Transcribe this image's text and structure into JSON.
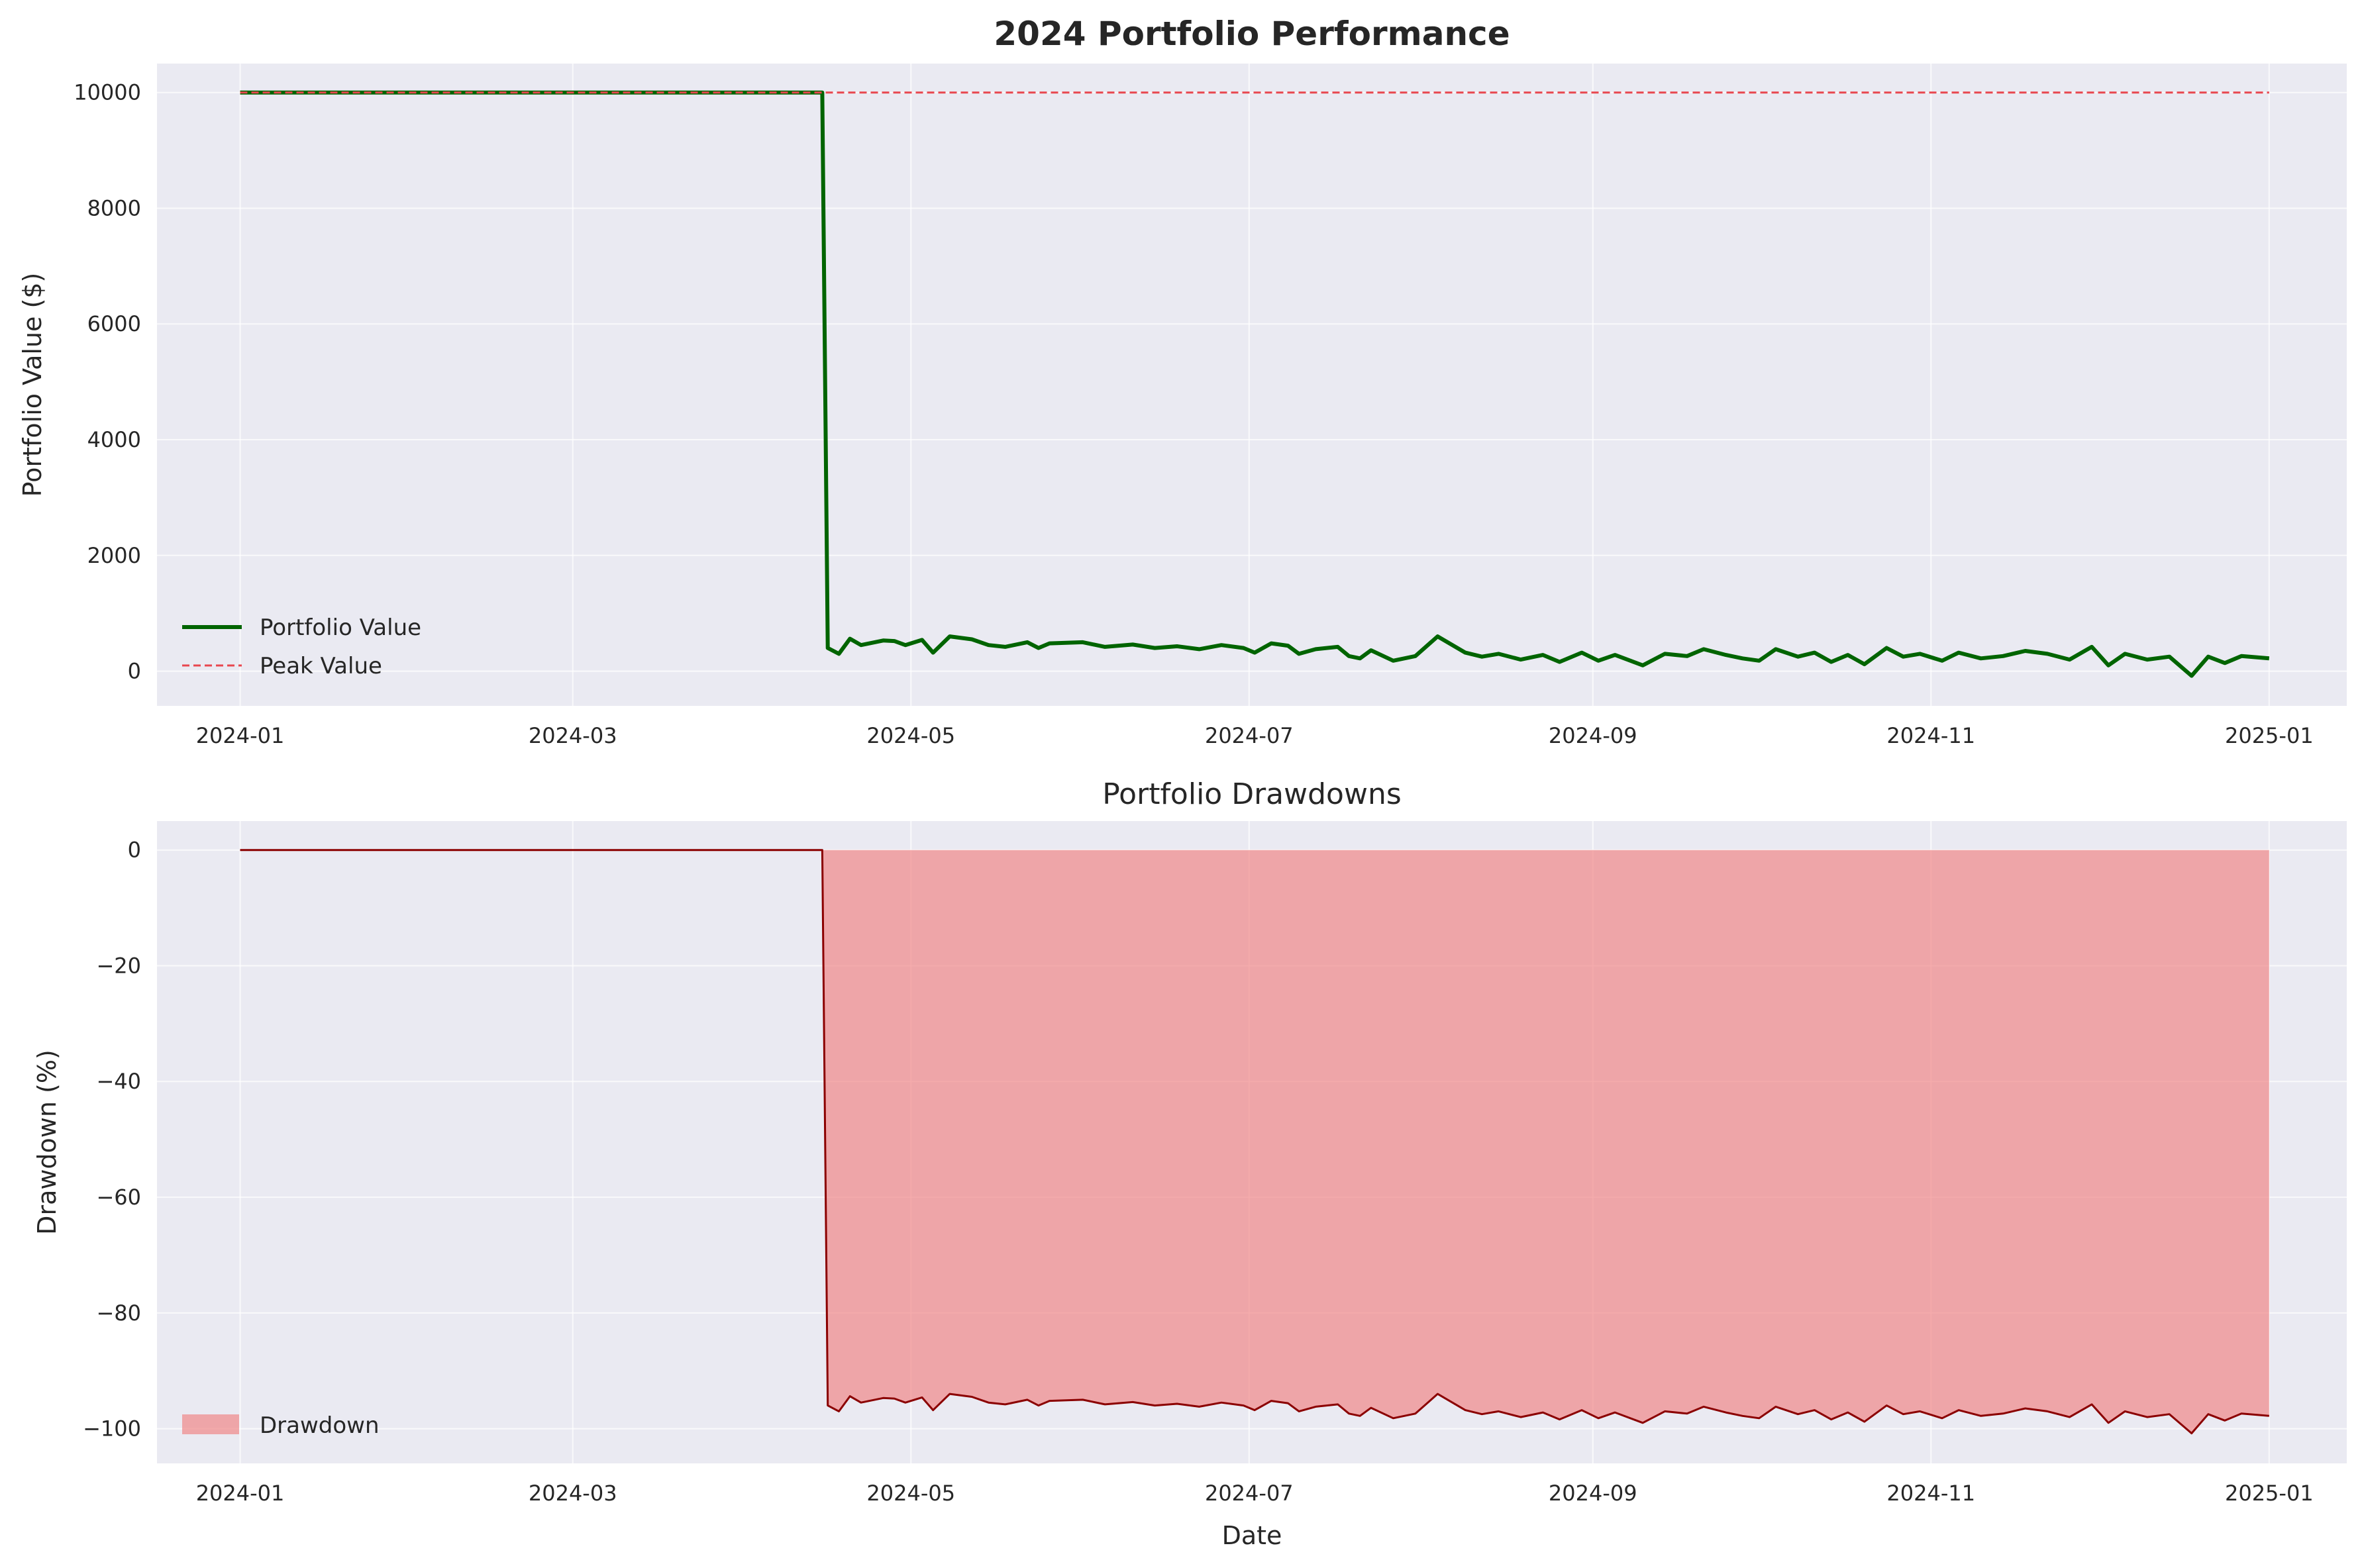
{
  "figure": {
    "background": "#ffffff",
    "axes_background": "#eaeaf2"
  },
  "chart_data": [
    {
      "type": "line",
      "title": "2024 Portfolio Performance",
      "xlabel": "",
      "ylabel": "Portfolio Value ($)",
      "x_start": "2024-01-01",
      "x_ticks": [
        "2024-01",
        "2024-03",
        "2024-05",
        "2024-07",
        "2024-09",
        "2024-11",
        "2025-01"
      ],
      "xlim": [
        "2023-12-17",
        "2025-01-15"
      ],
      "y_ticks": [
        0,
        2000,
        4000,
        6000,
        8000,
        10000
      ],
      "ylim": [
        -600,
        10500
      ],
      "grid": true,
      "legend": "lower-left",
      "series": [
        {
          "name": "Portfolio Value",
          "style": "solid",
          "color": "#006400",
          "points": [
            [
              "2024-01-01",
              10000
            ],
            [
              "2024-04-15",
              10000
            ],
            [
              "2024-04-16",
              400
            ],
            [
              "2024-04-18",
              300
            ],
            [
              "2024-04-20",
              560
            ],
            [
              "2024-04-22",
              450
            ],
            [
              "2024-04-26",
              530
            ],
            [
              "2024-04-28",
              520
            ],
            [
              "2024-04-30",
              450
            ],
            [
              "2024-05-03",
              540
            ],
            [
              "2024-05-05",
              320
            ],
            [
              "2024-05-08",
              600
            ],
            [
              "2024-05-12",
              550
            ],
            [
              "2024-05-15",
              450
            ],
            [
              "2024-05-18",
              420
            ],
            [
              "2024-05-22",
              500
            ],
            [
              "2024-05-24",
              400
            ],
            [
              "2024-05-26",
              480
            ],
            [
              "2024-06-01",
              500
            ],
            [
              "2024-06-05",
              420
            ],
            [
              "2024-06-10",
              460
            ],
            [
              "2024-06-14",
              400
            ],
            [
              "2024-06-18",
              430
            ],
            [
              "2024-06-22",
              380
            ],
            [
              "2024-06-26",
              450
            ],
            [
              "2024-06-30",
              400
            ],
            [
              "2024-07-02",
              320
            ],
            [
              "2024-07-05",
              480
            ],
            [
              "2024-07-08",
              440
            ],
            [
              "2024-07-10",
              300
            ],
            [
              "2024-07-13",
              380
            ],
            [
              "2024-07-17",
              420
            ],
            [
              "2024-07-19",
              260
            ],
            [
              "2024-07-21",
              220
            ],
            [
              "2024-07-23",
              360
            ],
            [
              "2024-07-27",
              180
            ],
            [
              "2024-07-31",
              260
            ],
            [
              "2024-08-04",
              600
            ],
            [
              "2024-08-09",
              320
            ],
            [
              "2024-08-12",
              250
            ],
            [
              "2024-08-15",
              300
            ],
            [
              "2024-08-19",
              200
            ],
            [
              "2024-08-23",
              280
            ],
            [
              "2024-08-26",
              160
            ],
            [
              "2024-08-30",
              320
            ],
            [
              "2024-09-02",
              180
            ],
            [
              "2024-09-05",
              280
            ],
            [
              "2024-09-10",
              100
            ],
            [
              "2024-09-14",
              300
            ],
            [
              "2024-09-18",
              260
            ],
            [
              "2024-09-21",
              380
            ],
            [
              "2024-09-25",
              280
            ],
            [
              "2024-09-28",
              220
            ],
            [
              "2024-10-01",
              180
            ],
            [
              "2024-10-04",
              380
            ],
            [
              "2024-10-08",
              250
            ],
            [
              "2024-10-11",
              320
            ],
            [
              "2024-10-14",
              160
            ],
            [
              "2024-10-17",
              280
            ],
            [
              "2024-10-20",
              120
            ],
            [
              "2024-10-24",
              400
            ],
            [
              "2024-10-27",
              250
            ],
            [
              "2024-10-30",
              300
            ],
            [
              "2024-11-03",
              180
            ],
            [
              "2024-11-06",
              320
            ],
            [
              "2024-11-10",
              220
            ],
            [
              "2024-11-14",
              260
            ],
            [
              "2024-11-18",
              350
            ],
            [
              "2024-11-22",
              300
            ],
            [
              "2024-11-26",
              200
            ],
            [
              "2024-11-30",
              420
            ],
            [
              "2024-12-03",
              100
            ],
            [
              "2024-12-06",
              300
            ],
            [
              "2024-12-10",
              200
            ],
            [
              "2024-12-14",
              250
            ],
            [
              "2024-12-18",
              -80
            ],
            [
              "2024-12-21",
              250
            ],
            [
              "2024-12-24",
              140
            ],
            [
              "2024-12-27",
              260
            ],
            [
              "2025-01-01",
              220
            ]
          ]
        },
        {
          "name": "Peak Value",
          "style": "dashed",
          "color": "#e8474f",
          "points": [
            [
              "2024-01-01",
              10000
            ],
            [
              "2025-01-01",
              10000
            ]
          ]
        }
      ]
    },
    {
      "type": "area",
      "title": "Portfolio Drawdowns",
      "xlabel": "Date",
      "ylabel": "Drawdown (%)",
      "x_ticks": [
        "2024-01",
        "2024-03",
        "2024-05",
        "2024-07",
        "2024-09",
        "2024-11",
        "2025-01"
      ],
      "xlim": [
        "2023-12-17",
        "2025-01-15"
      ],
      "y_ticks": [
        0,
        -20,
        -40,
        -60,
        -80,
        -100
      ],
      "ylim": [
        -106,
        5
      ],
      "grid": true,
      "legend": "lower-left",
      "series": [
        {
          "name": "Drawdown",
          "fill_color": "#f08080",
          "line_color": "#8b0000",
          "points": [
            [
              "2024-01-01",
              0
            ],
            [
              "2024-04-15",
              0
            ],
            [
              "2024-04-16",
              -96
            ],
            [
              "2024-04-18",
              -97
            ],
            [
              "2024-04-20",
              -94.4
            ],
            [
              "2024-04-22",
              -95.5
            ],
            [
              "2024-04-26",
              -94.7
            ],
            [
              "2024-04-28",
              -94.8
            ],
            [
              "2024-04-30",
              -95.5
            ],
            [
              "2024-05-03",
              -94.6
            ],
            [
              "2024-05-05",
              -96.8
            ],
            [
              "2024-05-08",
              -94
            ],
            [
              "2024-05-12",
              -94.5
            ],
            [
              "2024-05-15",
              -95.5
            ],
            [
              "2024-05-18",
              -95.8
            ],
            [
              "2024-05-22",
              -95
            ],
            [
              "2024-05-24",
              -96
            ],
            [
              "2024-05-26",
              -95.2
            ],
            [
              "2024-06-01",
              -95
            ],
            [
              "2024-06-05",
              -95.8
            ],
            [
              "2024-06-10",
              -95.4
            ],
            [
              "2024-06-14",
              -96
            ],
            [
              "2024-06-18",
              -95.7
            ],
            [
              "2024-06-22",
              -96.2
            ],
            [
              "2024-06-26",
              -95.5
            ],
            [
              "2024-06-30",
              -96
            ],
            [
              "2024-07-02",
              -96.8
            ],
            [
              "2024-07-05",
              -95.2
            ],
            [
              "2024-07-08",
              -95.6
            ],
            [
              "2024-07-10",
              -97
            ],
            [
              "2024-07-13",
              -96.2
            ],
            [
              "2024-07-17",
              -95.8
            ],
            [
              "2024-07-19",
              -97.4
            ],
            [
              "2024-07-21",
              -97.8
            ],
            [
              "2024-07-23",
              -96.4
            ],
            [
              "2024-07-27",
              -98.2
            ],
            [
              "2024-07-31",
              -97.4
            ],
            [
              "2024-08-04",
              -94
            ],
            [
              "2024-08-09",
              -96.8
            ],
            [
              "2024-08-12",
              -97.5
            ],
            [
              "2024-08-15",
              -97
            ],
            [
              "2024-08-19",
              -98
            ],
            [
              "2024-08-23",
              -97.2
            ],
            [
              "2024-08-26",
              -98.4
            ],
            [
              "2024-08-30",
              -96.8
            ],
            [
              "2024-09-02",
              -98.2
            ],
            [
              "2024-09-05",
              -97.2
            ],
            [
              "2024-09-10",
              -99
            ],
            [
              "2024-09-14",
              -97
            ],
            [
              "2024-09-18",
              -97.4
            ],
            [
              "2024-09-21",
              -96.2
            ],
            [
              "2024-09-25",
              -97.2
            ],
            [
              "2024-09-28",
              -97.8
            ],
            [
              "2024-10-01",
              -98.2
            ],
            [
              "2024-10-04",
              -96.2
            ],
            [
              "2024-10-08",
              -97.5
            ],
            [
              "2024-10-11",
              -96.8
            ],
            [
              "2024-10-14",
              -98.4
            ],
            [
              "2024-10-17",
              -97.2
            ],
            [
              "2024-10-20",
              -98.8
            ],
            [
              "2024-10-24",
              -96
            ],
            [
              "2024-10-27",
              -97.5
            ],
            [
              "2024-10-30",
              -97
            ],
            [
              "2024-11-03",
              -98.2
            ],
            [
              "2024-11-06",
              -96.8
            ],
            [
              "2024-11-10",
              -97.8
            ],
            [
              "2024-11-14",
              -97.4
            ],
            [
              "2024-11-18",
              -96.5
            ],
            [
              "2024-11-22",
              -97
            ],
            [
              "2024-11-26",
              -98
            ],
            [
              "2024-11-30",
              -95.8
            ],
            [
              "2024-12-03",
              -99
            ],
            [
              "2024-12-06",
              -97
            ],
            [
              "2024-12-10",
              -98
            ],
            [
              "2024-12-14",
              -97.5
            ],
            [
              "2024-12-18",
              -100.8
            ],
            [
              "2024-12-21",
              -97.5
            ],
            [
              "2024-12-24",
              -98.6
            ],
            [
              "2024-12-27",
              -97.4
            ],
            [
              "2025-01-01",
              -97.8
            ]
          ]
        }
      ]
    }
  ]
}
